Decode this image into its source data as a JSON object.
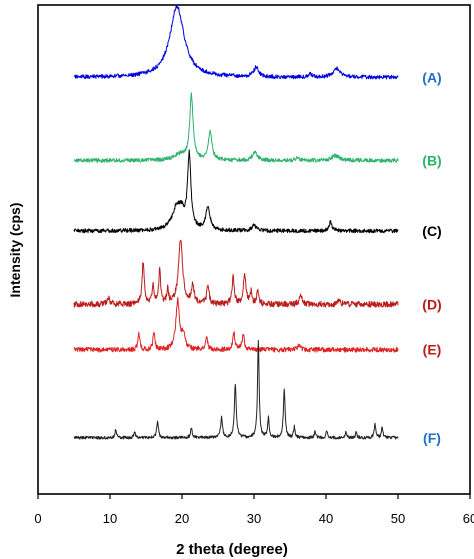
{
  "chart_data": {
    "type": "line",
    "xlabel": "2 theta (degree)",
    "ylabel": "Intensity (cps)",
    "xlim": [
      0,
      60
    ],
    "xticks": [
      0,
      10,
      20,
      30,
      40,
      50,
      60
    ],
    "y_ticks_shown": false,
    "grid": false,
    "legend": "series labels at right end of each trace",
    "x_range_measured": [
      5,
      50
    ],
    "series": [
      {
        "name": "(A)",
        "color": "#0000dd",
        "label_color": "#1f6fc5",
        "baseline": 0.148,
        "noise": 0.004,
        "seed": 11,
        "peaks": [
          [
            19.3,
            0.145,
            1.2
          ],
          [
            30.3,
            0.02,
            0.4
          ],
          [
            41.5,
            0.018,
            0.6
          ],
          [
            37.8,
            0.006,
            0.3
          ]
        ]
      },
      {
        "name": "(B)",
        "color": "#2db36b",
        "label_color": "#2db36b",
        "baseline": 0.318,
        "noise": 0.004,
        "seed": 23,
        "peaks": [
          [
            21.3,
            0.13,
            0.28
          ],
          [
            23.9,
            0.058,
            0.3
          ],
          [
            19.8,
            0.012,
            1.0
          ],
          [
            30.1,
            0.016,
            0.4
          ],
          [
            41.3,
            0.01,
            0.6
          ],
          [
            36.0,
            0.004,
            0.4
          ]
        ]
      },
      {
        "name": "(C)",
        "color": "#000000",
        "label_color": "#000000",
        "baseline": 0.462,
        "noise": 0.004,
        "seed": 37,
        "peaks": [
          [
            21.0,
            0.15,
            0.28
          ],
          [
            19.3,
            0.048,
            0.8
          ],
          [
            23.6,
            0.048,
            0.35
          ],
          [
            40.6,
            0.018,
            0.25
          ],
          [
            30.0,
            0.012,
            0.3
          ],
          [
            20.0,
            0.02,
            0.4
          ]
        ]
      },
      {
        "name": "(D)",
        "color": "#bb1c1c",
        "label_color": "#bb1c1c",
        "baseline": 0.612,
        "noise": 0.006,
        "seed": 41,
        "peaks": [
          [
            14.6,
            0.085,
            0.18
          ],
          [
            16.0,
            0.04,
            0.15
          ],
          [
            16.9,
            0.07,
            0.15
          ],
          [
            18.0,
            0.03,
            0.15
          ],
          [
            19.8,
            0.13,
            0.35
          ],
          [
            21.5,
            0.04,
            0.2
          ],
          [
            23.6,
            0.042,
            0.18
          ],
          [
            27.1,
            0.055,
            0.18
          ],
          [
            28.7,
            0.06,
            0.22
          ],
          [
            29.6,
            0.025,
            0.15
          ],
          [
            30.5,
            0.03,
            0.15
          ],
          [
            9.8,
            0.014,
            0.2
          ],
          [
            36.5,
            0.022,
            0.2
          ],
          [
            41.8,
            0.01,
            0.2
          ]
        ]
      },
      {
        "name": "(E)",
        "color": "#e02222",
        "label_color": "#bb1c1c",
        "baseline": 0.705,
        "noise": 0.005,
        "seed": 53,
        "peaks": [
          [
            14.0,
            0.034,
            0.15
          ],
          [
            16.1,
            0.036,
            0.15
          ],
          [
            19.4,
            0.1,
            0.3
          ],
          [
            20.2,
            0.03,
            0.25
          ],
          [
            23.4,
            0.026,
            0.18
          ],
          [
            27.2,
            0.034,
            0.18
          ],
          [
            28.5,
            0.032,
            0.18
          ],
          [
            36.3,
            0.01,
            0.25
          ]
        ]
      },
      {
        "name": "(F)",
        "color": "#222222",
        "label_color": "#1f6fc5",
        "baseline": 0.885,
        "noise": 0.003,
        "seed": 67,
        "peaks": [
          [
            10.8,
            0.018,
            0.12
          ],
          [
            13.4,
            0.014,
            0.12
          ],
          [
            16.6,
            0.034,
            0.15
          ],
          [
            21.3,
            0.018,
            0.15
          ],
          [
            25.5,
            0.042,
            0.15
          ],
          [
            27.4,
            0.11,
            0.15
          ],
          [
            30.6,
            0.2,
            0.13
          ],
          [
            32.0,
            0.04,
            0.13
          ],
          [
            34.2,
            0.1,
            0.14
          ],
          [
            35.6,
            0.022,
            0.12
          ],
          [
            38.5,
            0.014,
            0.12
          ],
          [
            40.1,
            0.016,
            0.12
          ],
          [
            42.8,
            0.012,
            0.12
          ],
          [
            46.8,
            0.03,
            0.12
          ],
          [
            47.8,
            0.022,
            0.12
          ],
          [
            44.2,
            0.012,
            0.12
          ]
        ]
      }
    ]
  }
}
